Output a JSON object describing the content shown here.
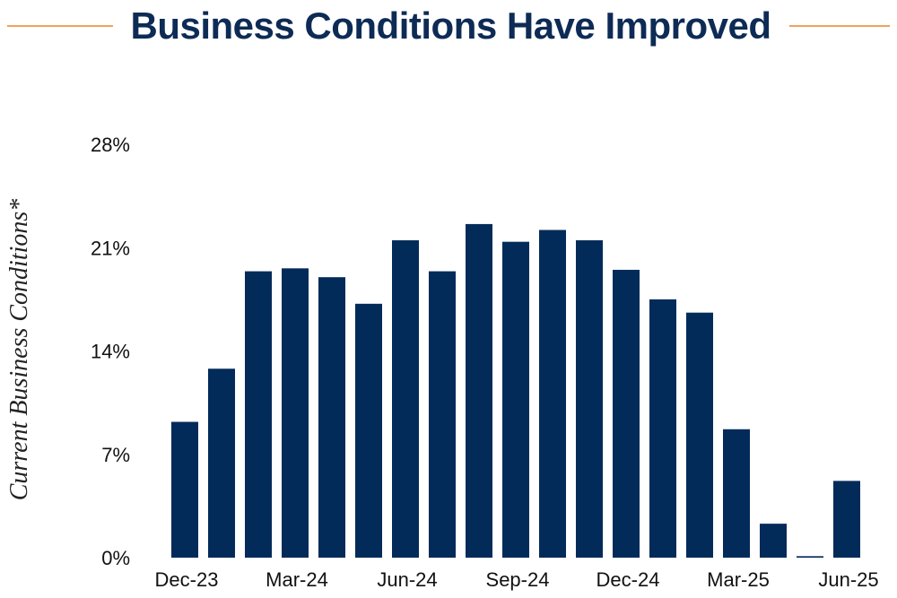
{
  "colors": {
    "bar": "#032b5a",
    "title": "#0d2b55",
    "accent_line": "#f0a25a"
  },
  "chart_data": {
    "type": "bar",
    "title": "Business Conditions Have Improved",
    "xlabel": "",
    "ylabel": "Current Business Conditions*",
    "ylim": [
      0,
      28
    ],
    "yticks": [
      "0%",
      "7%",
      "14%",
      "21%",
      "28%"
    ],
    "ytick_values": [
      0,
      7,
      14,
      21,
      28
    ],
    "x_tick_labels": [
      "Dec-23",
      "Mar-24",
      "Jun-24",
      "Sep-24",
      "Dec-24",
      "Mar-25",
      "Jun-25"
    ],
    "categories": [
      "Dec-23",
      "Jan-24",
      "Feb-24",
      "Mar-24",
      "Apr-24",
      "May-24",
      "Jun-24",
      "Jul-24",
      "Aug-24",
      "Sep-24",
      "Oct-24",
      "Nov-24",
      "Dec-24",
      "Jan-25",
      "Feb-25",
      "Mar-25",
      "Apr-25",
      "May-25",
      "Jun-25"
    ],
    "values": [
      9.2,
      12.8,
      19.4,
      19.6,
      19.0,
      17.2,
      21.5,
      19.4,
      22.6,
      21.4,
      22.2,
      21.5,
      19.5,
      17.5,
      16.6,
      8.7,
      2.3,
      0.1,
      5.2
    ],
    "grid": false,
    "legend": "none"
  }
}
